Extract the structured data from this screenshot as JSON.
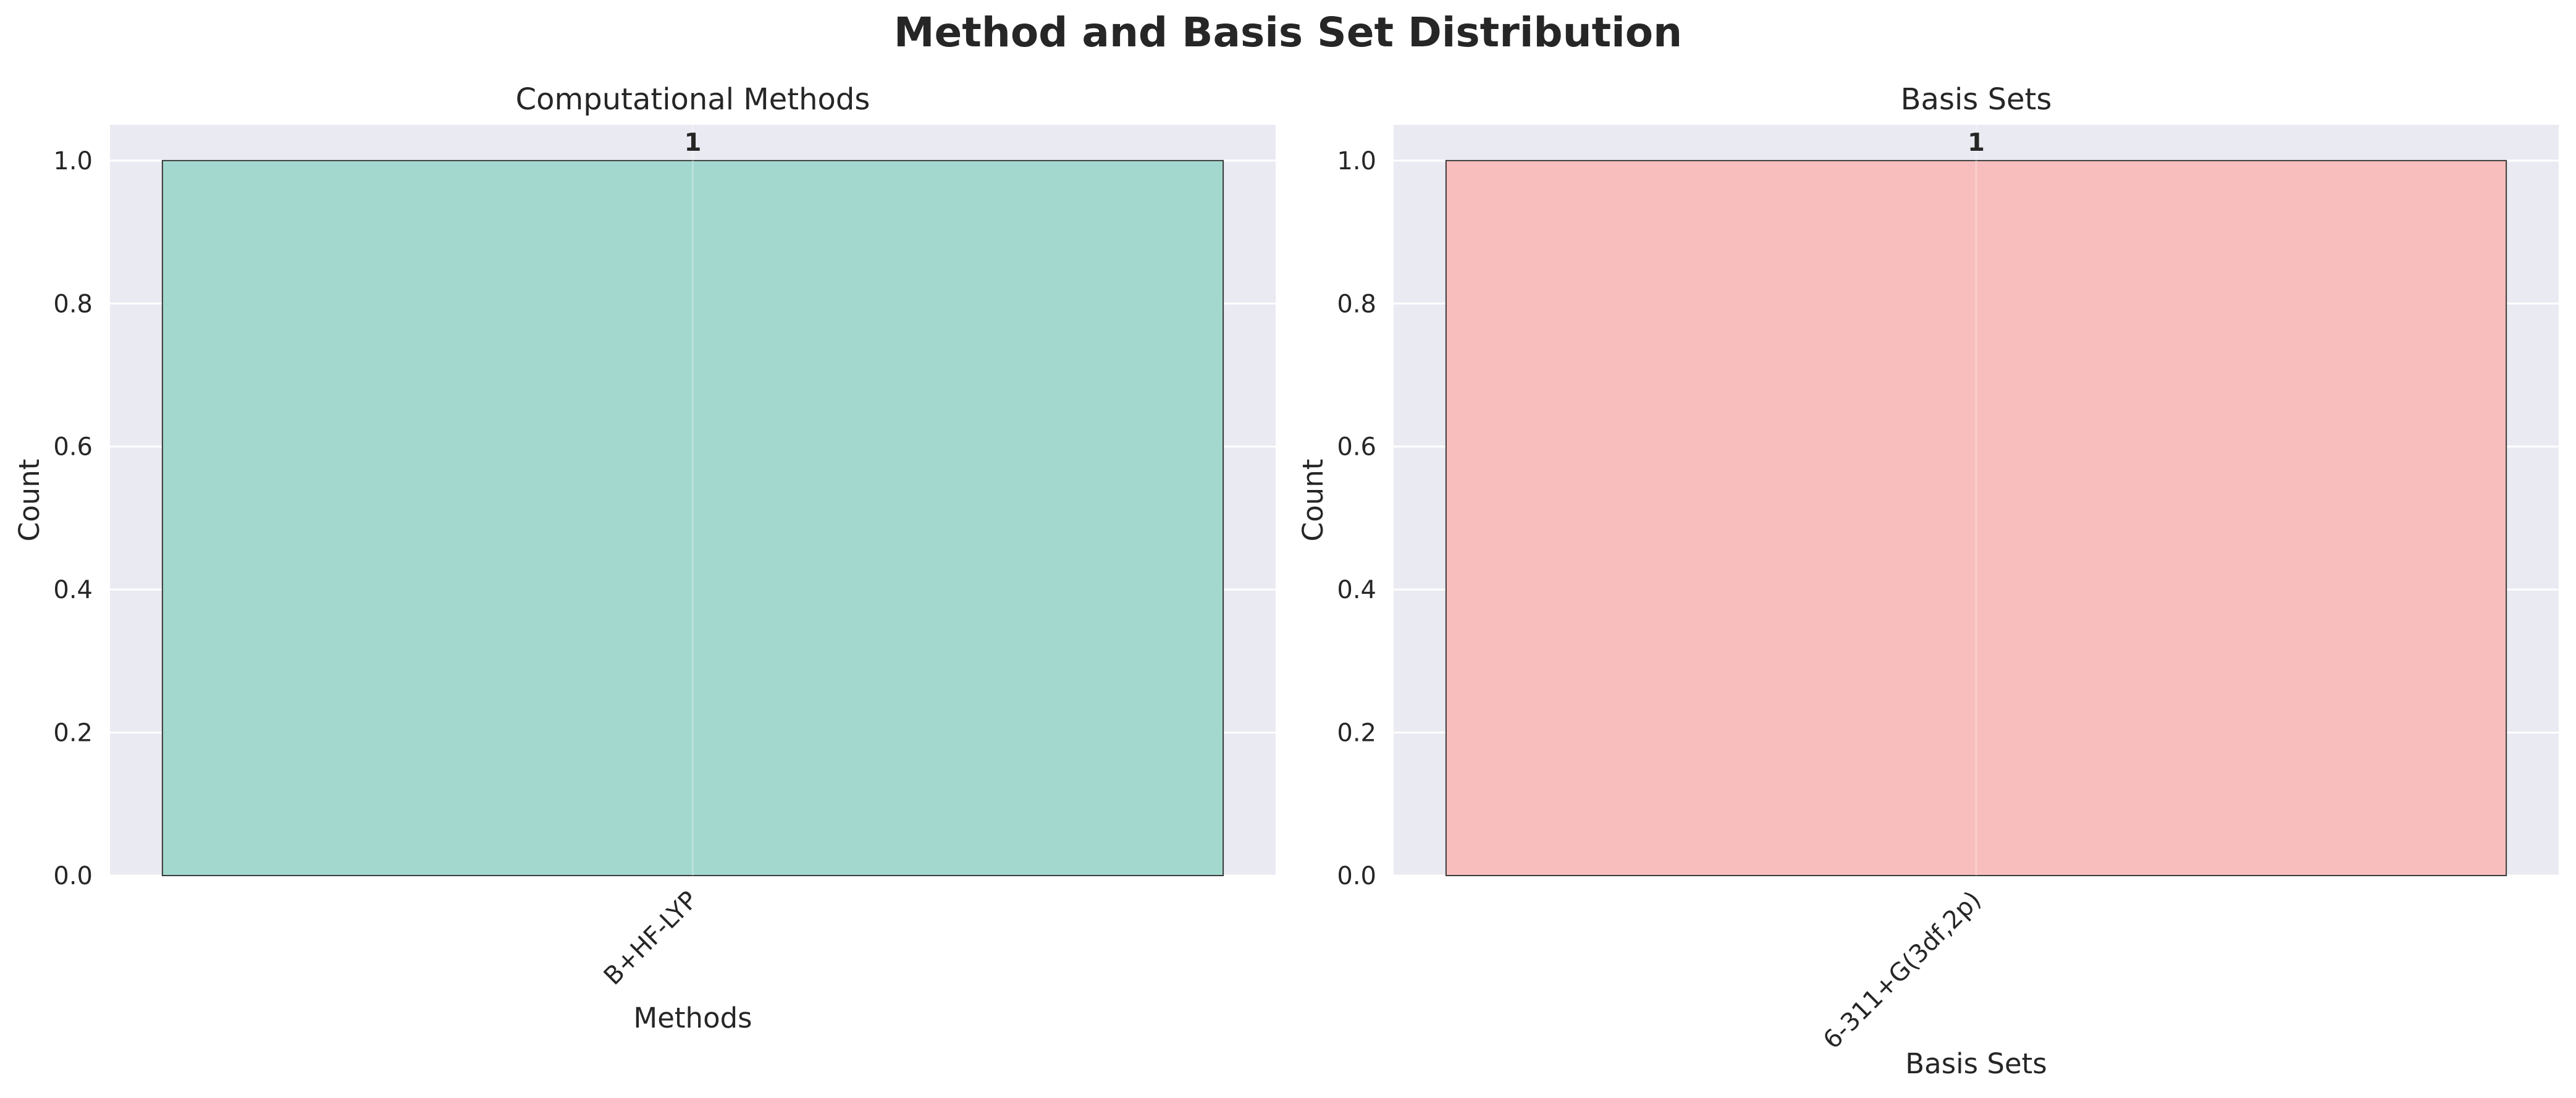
{
  "figure": {
    "title": "Method and Basis Set Distribution"
  },
  "chart_data": [
    {
      "type": "bar",
      "title": "Computational Methods",
      "xlabel": "Methods",
      "ylabel": "Count",
      "categories": [
        "B+HF-LYP"
      ],
      "values": [
        1
      ],
      "data_labels": [
        "1"
      ],
      "ylim": [
        0,
        1.05
      ],
      "yticks": [
        0.0,
        0.2,
        0.4,
        0.6,
        0.8,
        1.0
      ],
      "ytick_labels": [
        "0.0",
        "0.2",
        "0.4",
        "0.6",
        "0.8",
        "1.0"
      ],
      "grid": true,
      "bar_color": "#a3d8cf",
      "background_color": "#eaeaf2",
      "legend": "none"
    },
    {
      "type": "bar",
      "title": "Basis Sets",
      "xlabel": "Basis Sets",
      "ylabel": "Count",
      "categories": [
        "6-311+G(3df,2p)"
      ],
      "values": [
        1
      ],
      "data_labels": [
        "1"
      ],
      "ylim": [
        0,
        1.05
      ],
      "yticks": [
        0.0,
        0.2,
        0.4,
        0.6,
        0.8,
        1.0
      ],
      "ytick_labels": [
        "0.0",
        "0.2",
        "0.4",
        "0.6",
        "0.8",
        "1.0"
      ],
      "grid": true,
      "bar_color": "#f8bebd",
      "background_color": "#eaeaf2",
      "legend": "none"
    }
  ]
}
